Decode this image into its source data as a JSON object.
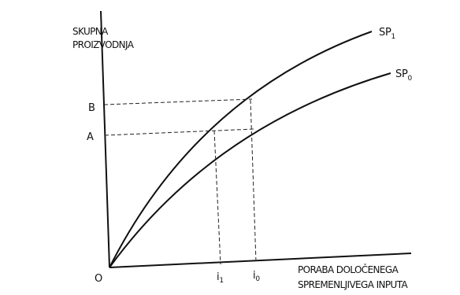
{
  "y_axis_label": [
    "SKUPNA",
    "PROIZVODNJA"
  ],
  "x_axis_label": [
    "PORABA DOLOČENEGA",
    "SPREMENLJIVEGA INPUTA"
  ],
  "origin_label": "O",
  "y_markers": [
    {
      "letter": "B"
    },
    {
      "letter": "A"
    }
  ],
  "x_markers": [
    {
      "base": "i",
      "sub": "1"
    },
    {
      "base": "i",
      "sub": "0"
    }
  ],
  "curves": [
    {
      "base": "SP",
      "sub": "1"
    },
    {
      "base": "SP",
      "sub": "0"
    }
  ],
  "colors": {
    "ink": "#111111",
    "background": "#ffffff"
  }
}
